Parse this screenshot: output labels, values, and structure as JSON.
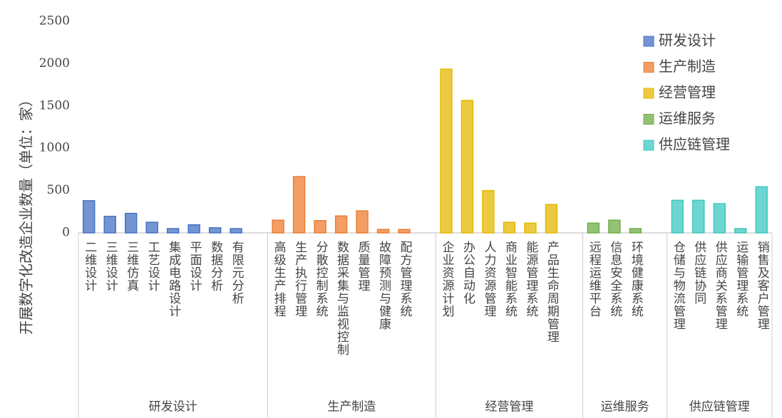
{
  "chart_data": {
    "type": "bar",
    "y_label": "开展数字化改造企业数量（单位：家）",
    "ylim": [
      0,
      2500
    ],
    "yticks": [
      0,
      500,
      1000,
      1500,
      2000,
      2500
    ],
    "legend": "upper right",
    "series": [
      {
        "name": "研发设计",
        "color": "#4472c4",
        "categories": [
          "二维设计",
          "三维设计",
          "三维仿真",
          "工艺设计",
          "集成电路设计",
          "平面设计",
          "数据分析",
          "有限元分析"
        ],
        "values": [
          380,
          195,
          230,
          125,
          50,
          95,
          60,
          50
        ]
      },
      {
        "name": "生产制造",
        "color": "#ed7d31",
        "categories": [
          "高级生产排程",
          "生产执行管理",
          "分散控制系统",
          "数据采集与监视控制",
          "质量管理",
          "故障预测与健康",
          "配方管理系统"
        ],
        "values": [
          150,
          665,
          145,
          200,
          260,
          40,
          40
        ]
      },
      {
        "name": "经营管理",
        "color": "#e6b800",
        "categories": [
          "企业资源计划",
          "办公自动化",
          "人力资源管理",
          "商业智能系统",
          "能源管理系统",
          "产品生命周期管理"
        ],
        "values": [
          1935,
          1565,
          500,
          125,
          115,
          335
        ]
      },
      {
        "name": "运维服务",
        "color": "#70ad47",
        "categories": [
          "远程运维平台",
          "信息安全系统",
          "环境健康系统"
        ],
        "values": [
          115,
          150,
          50
        ]
      },
      {
        "name": "供应链管理",
        "color": "#3cc8c0",
        "categories": [
          "仓储与物流管理",
          "供应链协同",
          "供应商关系管理",
          "运输管理系统",
          "销售及客户管理"
        ],
        "values": [
          385,
          385,
          345,
          50,
          545
        ]
      }
    ]
  }
}
